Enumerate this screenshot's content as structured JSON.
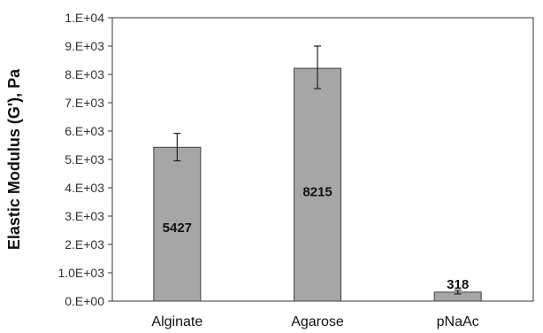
{
  "chart_data": {
    "type": "bar",
    "title": "",
    "xlabel": "",
    "ylabel": "Elastic Modulus (G'), Pa",
    "categories": [
      "Alginate",
      "Agarose",
      "pNaAc"
    ],
    "values": [
      5427,
      8215,
      318
    ],
    "data_labels": [
      "5427",
      "8215",
      "318"
    ],
    "error_bars": [
      [
        4950,
        5920
      ],
      [
        7500,
        9000
      ],
      [
        250,
        386
      ]
    ],
    "ylim": [
      0,
      10000
    ],
    "yticks": [
      0,
      1000,
      2000,
      3000,
      4000,
      5000,
      6000,
      7000,
      8000,
      9000,
      10000
    ],
    "ytick_labels": [
      "0.E+00",
      "1.0E+03",
      "2.E+03",
      "3.E+03",
      "4.E+03",
      "5.E+03",
      "6.E+03",
      "7.E+03",
      "8.E+03",
      "9.E+03",
      "1.E+04"
    ],
    "grid": false,
    "legend": false,
    "colors": {
      "bar_fill": "#a6a6a6",
      "bar_stroke": "#404040",
      "axis": "#333333",
      "error_bar": "#222222"
    }
  }
}
